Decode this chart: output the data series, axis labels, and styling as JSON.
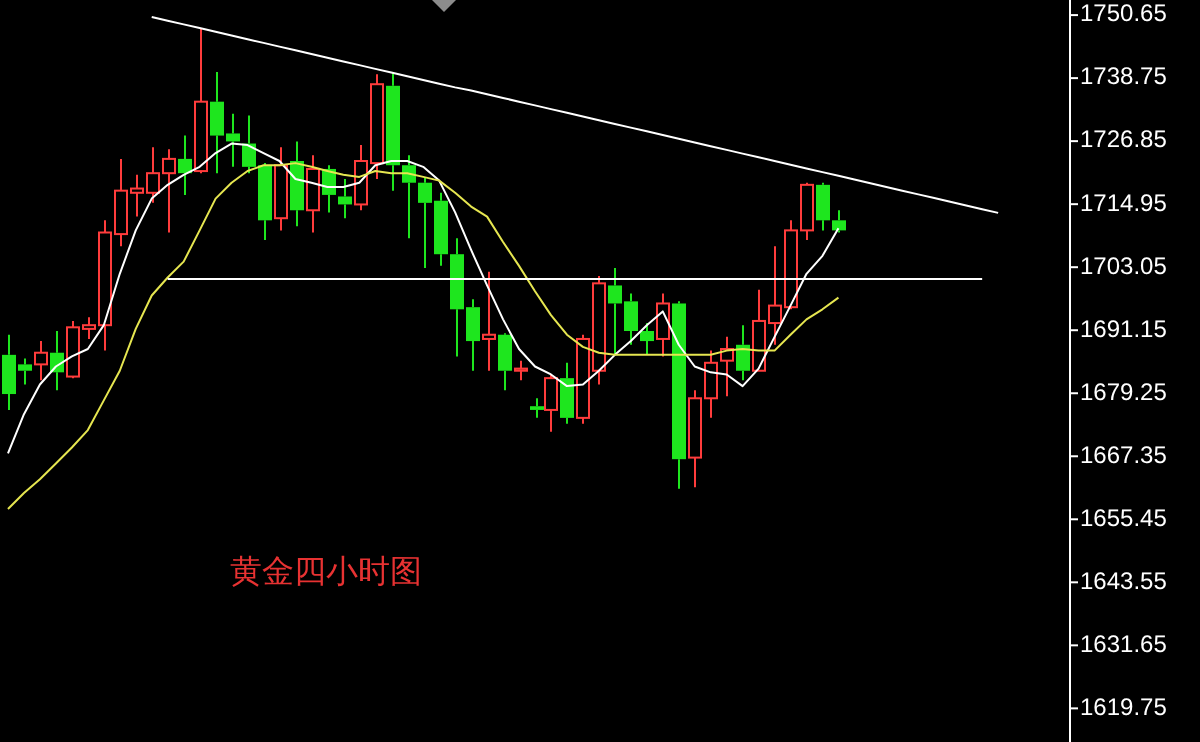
{
  "chart_data": {
    "type": "candlestick",
    "categories": [
      null,
      null,
      null,
      null,
      null,
      null,
      null,
      null,
      null,
      null,
      null,
      null,
      null,
      null,
      null,
      null,
      null,
      null,
      null,
      null,
      null,
      null,
      null,
      null,
      null,
      null,
      null,
      null,
      null,
      null,
      null,
      null,
      null,
      null,
      null,
      null,
      null,
      null,
      null,
      null,
      null,
      null,
      null,
      null,
      null,
      null,
      null,
      null,
      null,
      null,
      null,
      null,
      null,
      null,
      null,
      null,
      null,
      null,
      null,
      null,
      null,
      null,
      null,
      null,
      null,
      null,
      null
    ],
    "ohlc": [
      [
        1686.5,
        1690.3,
        1676.1,
        1679.1
      ],
      [
        1684.7,
        1685.8,
        1680.9,
        1683.5
      ],
      [
        1684.7,
        1689.1,
        1681.7,
        1686.9
      ],
      [
        1686.9,
        1691.0,
        1679.8,
        1683.2
      ],
      [
        1682.4,
        1692.9,
        1682.1,
        1691.7
      ],
      [
        1691.4,
        1693.6,
        1689.5,
        1692.1
      ],
      [
        1692.1,
        1711.9,
        1687.3,
        1709.6
      ],
      [
        1709.3,
        1723.5,
        1707.0,
        1717.5
      ],
      [
        1717.1,
        1720.5,
        1712.6,
        1717.9
      ],
      [
        1717.1,
        1725.7,
        1715.2,
        1720.8
      ],
      [
        1720.8,
        1725.3,
        1709.6,
        1723.5
      ],
      [
        1723.5,
        1727.9,
        1716.7,
        1720.8
      ],
      [
        1721.2,
        1748.1,
        1720.8,
        1734.3
      ],
      [
        1734.3,
        1739.9,
        1720.8,
        1727.9
      ],
      [
        1728.3,
        1732.0,
        1722.0,
        1726.8
      ],
      [
        1726.4,
        1731.7,
        1720.8,
        1722.0
      ],
      [
        1722.3,
        1722.7,
        1708.2,
        1711.9
      ],
      [
        1712.3,
        1725.7,
        1710.0,
        1722.3
      ],
      [
        1723.1,
        1726.8,
        1710.8,
        1713.8
      ],
      [
        1713.8,
        1724.2,
        1709.6,
        1721.6
      ],
      [
        1721.6,
        1722.3,
        1713.4,
        1716.7
      ],
      [
        1716.4,
        1719.7,
        1712.3,
        1714.9
      ],
      [
        1714.9,
        1726.1,
        1713.8,
        1723.1
      ],
      [
        1722.7,
        1739.5,
        1719.7,
        1737.6
      ],
      [
        1737.3,
        1739.9,
        1717.5,
        1722.3
      ],
      [
        1722.3,
        1724.2,
        1708.5,
        1719.0
      ],
      [
        1719.0,
        1720.1,
        1702.9,
        1715.2
      ],
      [
        1715.6,
        1717.1,
        1703.3,
        1705.5
      ],
      [
        1705.5,
        1708.5,
        1686.2,
        1695.1
      ],
      [
        1695.5,
        1697.0,
        1683.5,
        1689.1
      ],
      [
        1689.5,
        1702.2,
        1683.5,
        1690.3
      ],
      [
        1690.3,
        1690.6,
        1679.8,
        1683.5
      ],
      [
        1683.5,
        1685.4,
        1681.7,
        1683.9
      ],
      [
        1676.8,
        1678.3,
        1674.6,
        1676.1
      ],
      [
        1676.1,
        1682.8,
        1672.0,
        1682.1
      ],
      [
        1682.1,
        1685.0,
        1673.5,
        1674.6
      ],
      [
        1674.6,
        1690.3,
        1673.5,
        1689.5
      ],
      [
        1683.5,
        1701.4,
        1680.9,
        1700.0
      ],
      [
        1699.6,
        1702.9,
        1686.5,
        1696.2
      ],
      [
        1696.6,
        1698.1,
        1688.4,
        1691.0
      ],
      [
        1691.0,
        1692.5,
        1686.5,
        1689.1
      ],
      [
        1689.5,
        1698.1,
        1686.2,
        1696.2
      ],
      [
        1696.2,
        1696.6,
        1661.2,
        1666.8
      ],
      [
        1667.1,
        1679.8,
        1661.5,
        1678.3
      ],
      [
        1678.3,
        1687.3,
        1674.6,
        1685.0
      ],
      [
        1685.4,
        1689.9,
        1678.7,
        1687.6
      ],
      [
        1688.4,
        1692.1,
        1681.7,
        1683.5
      ],
      [
        1683.5,
        1698.8,
        1683.5,
        1692.9
      ],
      [
        1692.5,
        1707.0,
        1688.4,
        1695.8
      ],
      [
        1695.5,
        1711.9,
        1695.1,
        1710.0
      ],
      [
        1710.0,
        1719.0,
        1708.2,
        1718.6
      ],
      [
        1718.6,
        1719.0,
        1710.0,
        1711.9
      ],
      [
        1711.9,
        1713.8,
        1709.6,
        1710.0
      ],
      null,
      null,
      null,
      null,
      null,
      null,
      null,
      null,
      null,
      null,
      null,
      null,
      null,
      null
    ],
    "series": [
      {
        "type": "line",
        "color": "#ffffff",
        "values": [
          1667.9,
          1675.3,
          1680.9,
          1684.3,
          1686.2,
          1687.6,
          1692.1,
          1701.8,
          1710.0,
          1716.0,
          1718.6,
          1720.5,
          1722.0,
          1724.6,
          1726.4,
          1726.1,
          1724.6,
          1723.1,
          1719.7,
          1719.0,
          1718.2,
          1718.2,
          1719.0,
          1722.3,
          1723.1,
          1723.1,
          1722.0,
          1719.4,
          1713.4,
          1706.3,
          1699.6,
          1693.2,
          1687.6,
          1684.3,
          1682.8,
          1680.6,
          1680.9,
          1683.5,
          1686.5,
          1689.1,
          1692.1,
          1694.7,
          1688.4,
          1684.3,
          1683.2,
          1682.8,
          1680.6,
          1683.9,
          1689.9,
          1695.8,
          1701.8,
          1705.2,
          1710.4,
          null,
          null,
          null,
          null,
          null,
          null,
          null,
          null,
          null,
          null,
          null,
          null,
          null,
          null
        ]
      },
      {
        "type": "line",
        "color": "#e6e650",
        "values": [
          1657.4,
          1660.4,
          1663.0,
          1666.0,
          1669.0,
          1672.3,
          1677.9,
          1683.5,
          1691.4,
          1697.7,
          1701.1,
          1704.1,
          1710.0,
          1716.0,
          1719.0,
          1721.2,
          1722.3,
          1722.3,
          1722.7,
          1722.0,
          1721.2,
          1720.5,
          1720.1,
          1721.2,
          1720.8,
          1720.8,
          1720.1,
          1719.4,
          1717.1,
          1714.5,
          1712.6,
          1707.8,
          1703.3,
          1698.5,
          1694.0,
          1690.3,
          1688.0,
          1686.9,
          1686.5,
          1686.5,
          1686.5,
          1686.5,
          1686.5,
          1686.5,
          1686.5,
          1687.3,
          1687.6,
          1687.3,
          1687.3,
          1690.3,
          1693.2,
          1695.1,
          1697.3,
          null,
          null,
          null,
          null,
          null,
          null,
          null,
          null,
          null,
          null,
          null,
          null,
          null,
          null
        ]
      },
      {
        "type": "line",
        "color": "#ffffff",
        "values": [
          null,
          null,
          null,
          null,
          null,
          null,
          null,
          null,
          null,
          1750.3,
          1749.6,
          1748.9,
          1748.2,
          1747.5,
          1746.8,
          1746.1,
          1745.4,
          1744.7,
          1744.0,
          1743.3,
          1742.6,
          1741.9,
          1741.2,
          1740.5,
          1739.8,
          1739.1,
          1738.4,
          1737.7,
          1737.0,
          1736.4,
          1735.7,
          1735.0,
          1734.3,
          1733.6,
          1732.9,
          1732.2,
          1731.5,
          1730.8,
          1730.1,
          1729.4,
          1728.7,
          1728.0,
          1727.3,
          1726.6,
          1725.9,
          1725.2,
          1724.5,
          1723.8,
          1723.1,
          1722.4,
          1721.7,
          1721.0,
          1720.3,
          1719.6,
          1718.9,
          1718.2,
          1717.5,
          1716.8,
          1716.1,
          1715.4,
          1714.7,
          1714.0,
          1713.3,
          null,
          null,
          null,
          null
        ]
      },
      {
        "type": "line",
        "color": "#ffffff",
        "values": [
          null,
          null,
          null,
          null,
          null,
          null,
          null,
          null,
          null,
          null,
          1700.8,
          1700.8,
          1700.8,
          1700.8,
          1700.8,
          1700.8,
          1700.8,
          1700.8,
          1700.8,
          1700.8,
          1700.8,
          1700.8,
          1700.8,
          1700.8,
          1700.8,
          1700.8,
          1700.8,
          1700.8,
          1700.8,
          1700.8,
          1700.8,
          1700.8,
          1700.8,
          1700.8,
          1700.8,
          1700.8,
          1700.8,
          1700.8,
          1700.8,
          1700.8,
          1700.8,
          1700.8,
          1700.8,
          1700.8,
          1700.8,
          1700.8,
          1700.8,
          1700.8,
          1700.8,
          1700.8,
          1700.8,
          1700.8,
          1700.8,
          1700.8,
          1700.8,
          1700.8,
          1700.8,
          1700.8,
          1700.8,
          1700.8,
          1700.8,
          1700.8,
          null,
          null,
          null,
          null,
          null
        ]
      }
    ],
    "ylim": [
      1613.4,
      1753.5
    ],
    "yticks": [
      1750.65,
      1738.75,
      1726.85,
      1714.95,
      1703.05,
      1691.15,
      1679.25,
      1667.35,
      1655.45,
      1643.55,
      1631.65,
      1619.75
    ],
    "tick_labels": "y",
    "annotations": [
      "黄金四小时图"
    ]
  }
}
